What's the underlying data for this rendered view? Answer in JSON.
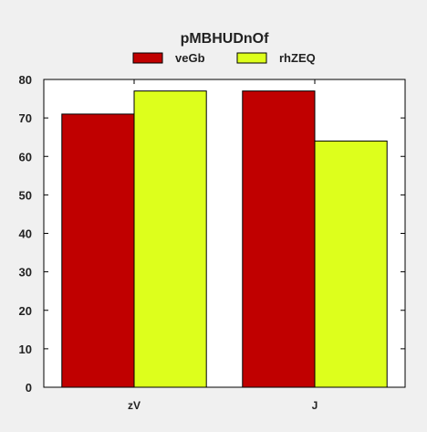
{
  "chart_data": {
    "type": "bar",
    "title": "pMBHUDnOf",
    "categories": [
      "zV",
      "J"
    ],
    "series": [
      {
        "name": "veGb",
        "color": "#c00000",
        "values": [
          71,
          77
        ]
      },
      {
        "name": "rhZEQ",
        "color": "#ddff1c",
        "values": [
          77,
          64
        ]
      }
    ],
    "xlabel": "",
    "ylabel": "",
    "ylim": [
      0,
      80
    ],
    "yticks": [
      0,
      10,
      20,
      30,
      40,
      50,
      60,
      70,
      80
    ],
    "grid": false,
    "legend_position": "top-center"
  }
}
